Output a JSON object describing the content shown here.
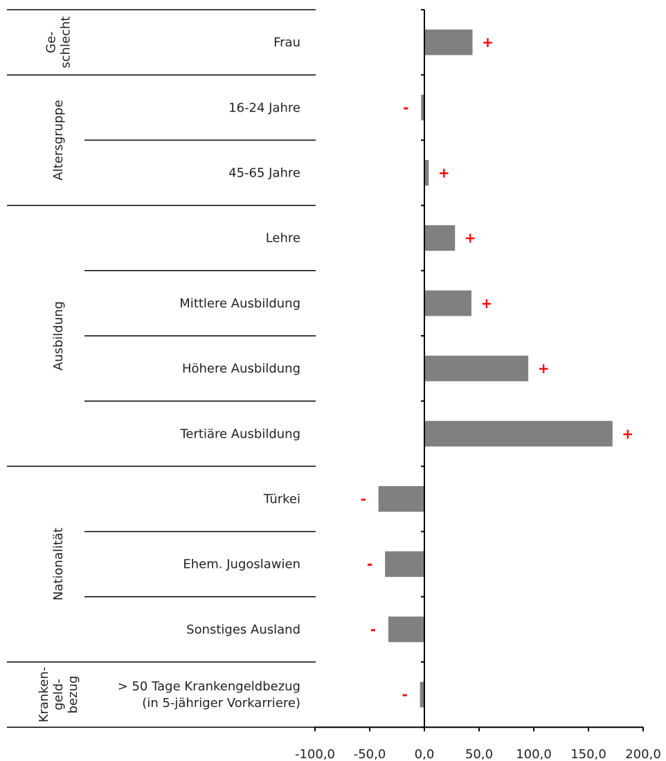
{
  "chart_data": {
    "type": "bar",
    "orientation": "horizontal",
    "x_ticks": [
      "-100,0",
      "-50,0",
      "0,0",
      "50,0",
      "100,0",
      "150,0",
      "200,0"
    ],
    "xlim": [
      -100,
      200
    ],
    "groups": [
      {
        "label_lines": [
          "Ge-",
          "schlecht"
        ],
        "rows": [
          {
            "label_lines": [
              "Frau"
            ],
            "value": 44,
            "sig": "+"
          }
        ]
      },
      {
        "label_lines": [
          "Altersgruppe"
        ],
        "rows": [
          {
            "label_lines": [
              "16-24 Jahre"
            ],
            "value": -3,
            "sig": "-"
          },
          {
            "label_lines": [
              "45-65 Jahre"
            ],
            "value": 4,
            "sig": "+"
          }
        ]
      },
      {
        "label_lines": [
          "Ausbildung"
        ],
        "rows": [
          {
            "label_lines": [
              "Lehre"
            ],
            "value": 28,
            "sig": "+"
          },
          {
            "label_lines": [
              "Mittlere Ausbildung"
            ],
            "value": 43,
            "sig": "+"
          },
          {
            "label_lines": [
              "Höhere Ausbildung"
            ],
            "value": 95,
            "sig": "+"
          },
          {
            "label_lines": [
              "Tertiäre Ausbildung"
            ],
            "value": 172,
            "sig": "+"
          }
        ]
      },
      {
        "label_lines": [
          "Nationalität"
        ],
        "rows": [
          {
            "label_lines": [
              "Türkei"
            ],
            "value": -42,
            "sig": "-"
          },
          {
            "label_lines": [
              "Ehem. Jugoslawien"
            ],
            "value": -36,
            "sig": "-"
          },
          {
            "label_lines": [
              "Sonstiges Ausland"
            ],
            "value": -33,
            "sig": "-"
          }
        ]
      },
      {
        "label_lines": [
          "Kranken-",
          "geld-",
          "bezug"
        ],
        "rows": [
          {
            "label_lines": [
              "> 50 Tage Krankengeldbezug",
              "(in 5-jähriger Vorkarriere)"
            ],
            "value": -4,
            "sig": "-"
          }
        ]
      }
    ]
  }
}
